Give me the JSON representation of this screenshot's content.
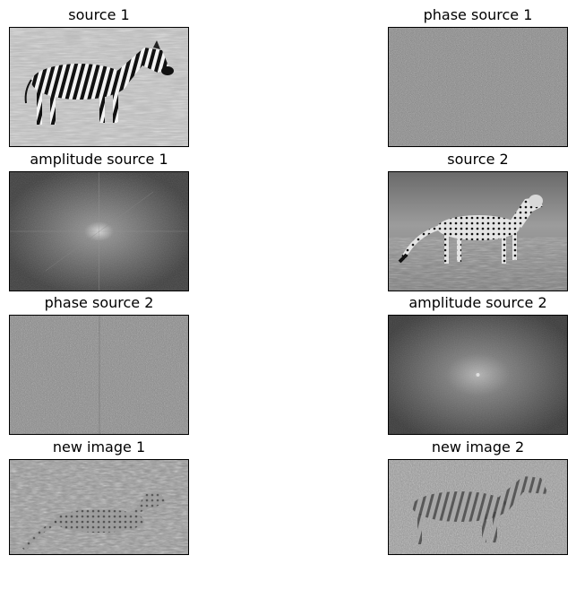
{
  "figure": {
    "panels": [
      {
        "id": "source-1",
        "title": "source 1"
      },
      {
        "id": "phase-source-1",
        "title": "phase source 1"
      },
      {
        "id": "amplitude-source-1",
        "title": "amplitude source 1"
      },
      {
        "id": "source-2",
        "title": "source 2"
      },
      {
        "id": "phase-source-2",
        "title": "phase source 2"
      },
      {
        "id": "amplitude-source-2",
        "title": "amplitude source 2"
      },
      {
        "id": "new-image-1",
        "title": "new image 1"
      },
      {
        "id": "new-image-2",
        "title": "new image 2"
      }
    ]
  }
}
